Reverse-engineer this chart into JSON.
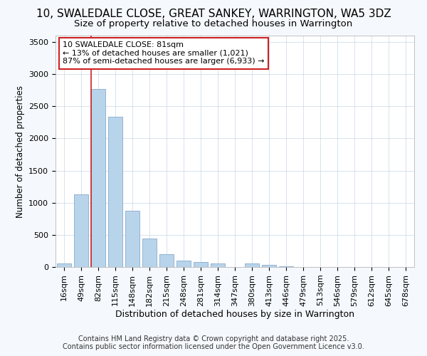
{
  "title": "10, SWALEDALE CLOSE, GREAT SANKEY, WARRINGTON, WA5 3DZ",
  "subtitle": "Size of property relative to detached houses in Warrington",
  "xlabel": "Distribution of detached houses by size in Warrington",
  "ylabel": "Number of detached properties",
  "categories": [
    "16sqm",
    "49sqm",
    "82sqm",
    "115sqm",
    "148sqm",
    "182sqm",
    "215sqm",
    "248sqm",
    "281sqm",
    "314sqm",
    "347sqm",
    "380sqm",
    "413sqm",
    "446sqm",
    "479sqm",
    "513sqm",
    "546sqm",
    "579sqm",
    "612sqm",
    "645sqm",
    "678sqm"
  ],
  "values": [
    60,
    1130,
    2770,
    2340,
    880,
    440,
    200,
    100,
    80,
    55,
    0,
    50,
    30,
    15,
    0,
    0,
    0,
    0,
    0,
    0,
    0
  ],
  "bar_color": "#b8d4eb",
  "bar_edge_color": "#88aacc",
  "vline_x_index": 2,
  "vline_color": "#cc2222",
  "annotation_title": "10 SWALEDALE CLOSE: 81sqm",
  "annotation_line1": "← 13% of detached houses are smaller (1,021)",
  "annotation_line2": "87% of semi-detached houses are larger (6,933) →",
  "annotation_box_edgecolor": "#cc2222",
  "ylim": [
    0,
    3600
  ],
  "yticks": [
    0,
    500,
    1000,
    1500,
    2000,
    2500,
    3000,
    3500
  ],
  "footer1": "Contains HM Land Registry data © Crown copyright and database right 2025.",
  "footer2": "Contains public sector information licensed under the Open Government Licence v3.0.",
  "bg_color": "#f5f8fc",
  "plot_bg_color": "#ffffff",
  "grid_color": "#c8d8e8",
  "title_fontsize": 11,
  "subtitle_fontsize": 9.5,
  "xlabel_fontsize": 9,
  "ylabel_fontsize": 8.5,
  "tick_fontsize": 8,
  "ann_fontsize": 8,
  "footer_fontsize": 7
}
